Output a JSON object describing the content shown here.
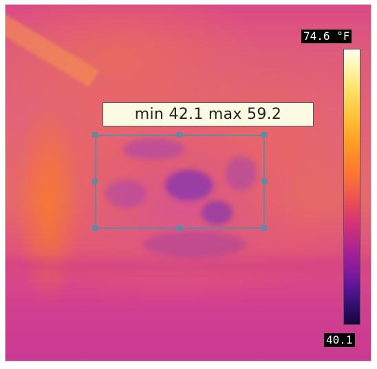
{
  "measurement": {
    "min_label": "min",
    "min_value": "42.1",
    "max_label": "max",
    "max_value": "59.2",
    "text": "min 42.1 max 59.2"
  },
  "scale": {
    "max_label": "74.6 °F",
    "min_label": "40.1",
    "max_value": 74.6,
    "min_value": 40.1,
    "unit": "°F"
  },
  "colors": {
    "roi_border": "#5f8aa6",
    "label_background": "#fbfbe4",
    "palette": [
      "#fffff2",
      "#ffe36a",
      "#ff9d24",
      "#f0524e",
      "#b3268c",
      "#5e1698",
      "#170538"
    ]
  }
}
